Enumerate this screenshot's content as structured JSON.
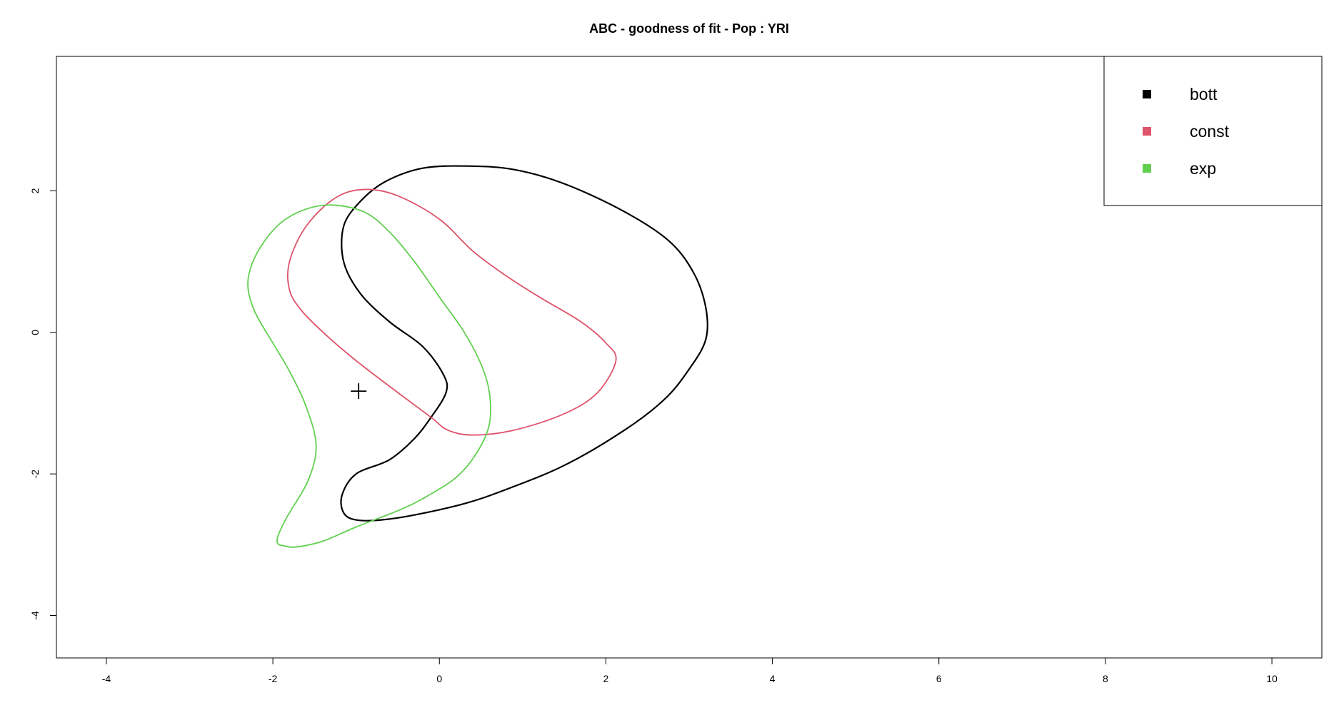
{
  "chart_data": {
    "type": "contour",
    "title": "ABC - goodness of fit - Pop : YRI",
    "xlabel": "",
    "ylabel": "",
    "xlim": [
      -4.6,
      10.6
    ],
    "ylim": [
      -4.6,
      3.9
    ],
    "x_ticks": [
      -4,
      -2,
      0,
      2,
      4,
      6,
      8,
      10
    ],
    "y_ticks": [
      -4,
      -2,
      0,
      2
    ],
    "grid": false,
    "legend_position": "top-right",
    "series": [
      {
        "name": "bott",
        "color": "#000000",
        "points": [
          [
            -1.0,
            -2.65
          ],
          [
            -0.7,
            -2.65
          ],
          [
            -0.3,
            -2.58
          ],
          [
            0.3,
            -2.42
          ],
          [
            0.8,
            -2.22
          ],
          [
            1.5,
            -1.88
          ],
          [
            2.2,
            -1.4
          ],
          [
            2.7,
            -0.95
          ],
          [
            3.0,
            -0.52
          ],
          [
            3.2,
            -0.1
          ],
          [
            3.2,
            0.35
          ],
          [
            3.05,
            0.85
          ],
          [
            2.75,
            1.3
          ],
          [
            2.2,
            1.72
          ],
          [
            1.5,
            2.1
          ],
          [
            0.9,
            2.3
          ],
          [
            0.35,
            2.35
          ],
          [
            -0.2,
            2.32
          ],
          [
            -0.65,
            2.13
          ],
          [
            -0.95,
            1.85
          ],
          [
            -1.15,
            1.5
          ],
          [
            -1.15,
            1.0
          ],
          [
            -0.95,
            0.55
          ],
          [
            -0.6,
            0.15
          ],
          [
            -0.2,
            -0.2
          ],
          [
            0.05,
            -0.6
          ],
          [
            0.08,
            -0.85
          ],
          [
            -0.1,
            -1.2
          ],
          [
            -0.3,
            -1.5
          ],
          [
            -0.6,
            -1.8
          ],
          [
            -1.0,
            -2.0
          ],
          [
            -1.17,
            -2.3
          ],
          [
            -1.15,
            -2.55
          ]
        ]
      },
      {
        "name": "const",
        "color": "#df536b",
        "points": [
          [
            0.4,
            -1.45
          ],
          [
            0.9,
            -1.38
          ],
          [
            1.5,
            -1.15
          ],
          [
            1.9,
            -0.85
          ],
          [
            2.12,
            -0.4
          ],
          [
            2.0,
            -0.15
          ],
          [
            1.7,
            0.15
          ],
          [
            1.2,
            0.5
          ],
          [
            0.8,
            0.8
          ],
          [
            0.4,
            1.15
          ],
          [
            0.0,
            1.6
          ],
          [
            -0.5,
            1.93
          ],
          [
            -0.9,
            2.02
          ],
          [
            -1.25,
            1.9
          ],
          [
            -1.6,
            1.5
          ],
          [
            -1.8,
            1.0
          ],
          [
            -1.8,
            0.6
          ],
          [
            -1.65,
            0.3
          ],
          [
            -1.35,
            -0.05
          ],
          [
            -1.0,
            -0.4
          ],
          [
            -0.5,
            -0.85
          ],
          [
            -0.1,
            -1.2
          ],
          [
            0.1,
            -1.38
          ]
        ]
      },
      {
        "name": "exp",
        "color": "#61d04f",
        "points": [
          [
            -1.7,
            -3.03
          ],
          [
            -1.4,
            -2.95
          ],
          [
            -1.0,
            -2.75
          ],
          [
            -0.5,
            -2.52
          ],
          [
            -0.2,
            -2.35
          ],
          [
            0.2,
            -2.05
          ],
          [
            0.45,
            -1.7
          ],
          [
            0.6,
            -1.3
          ],
          [
            0.6,
            -0.85
          ],
          [
            0.5,
            -0.45
          ],
          [
            0.3,
            0.0
          ],
          [
            0.0,
            0.5
          ],
          [
            -0.3,
            1.0
          ],
          [
            -0.6,
            1.42
          ],
          [
            -0.9,
            1.7
          ],
          [
            -1.3,
            1.8
          ],
          [
            -1.65,
            1.72
          ],
          [
            -1.95,
            1.5
          ],
          [
            -2.2,
            1.1
          ],
          [
            -2.3,
            0.7
          ],
          [
            -2.22,
            0.3
          ],
          [
            -2.0,
            -0.15
          ],
          [
            -1.8,
            -0.55
          ],
          [
            -1.6,
            -1.05
          ],
          [
            -1.48,
            -1.6
          ],
          [
            -1.58,
            -2.1
          ],
          [
            -1.85,
            -2.65
          ],
          [
            -1.95,
            -2.95
          ],
          [
            -1.85,
            -3.02
          ]
        ]
      }
    ],
    "observed_point": {
      "x": -0.97,
      "y": -0.83,
      "marker": "+"
    }
  }
}
